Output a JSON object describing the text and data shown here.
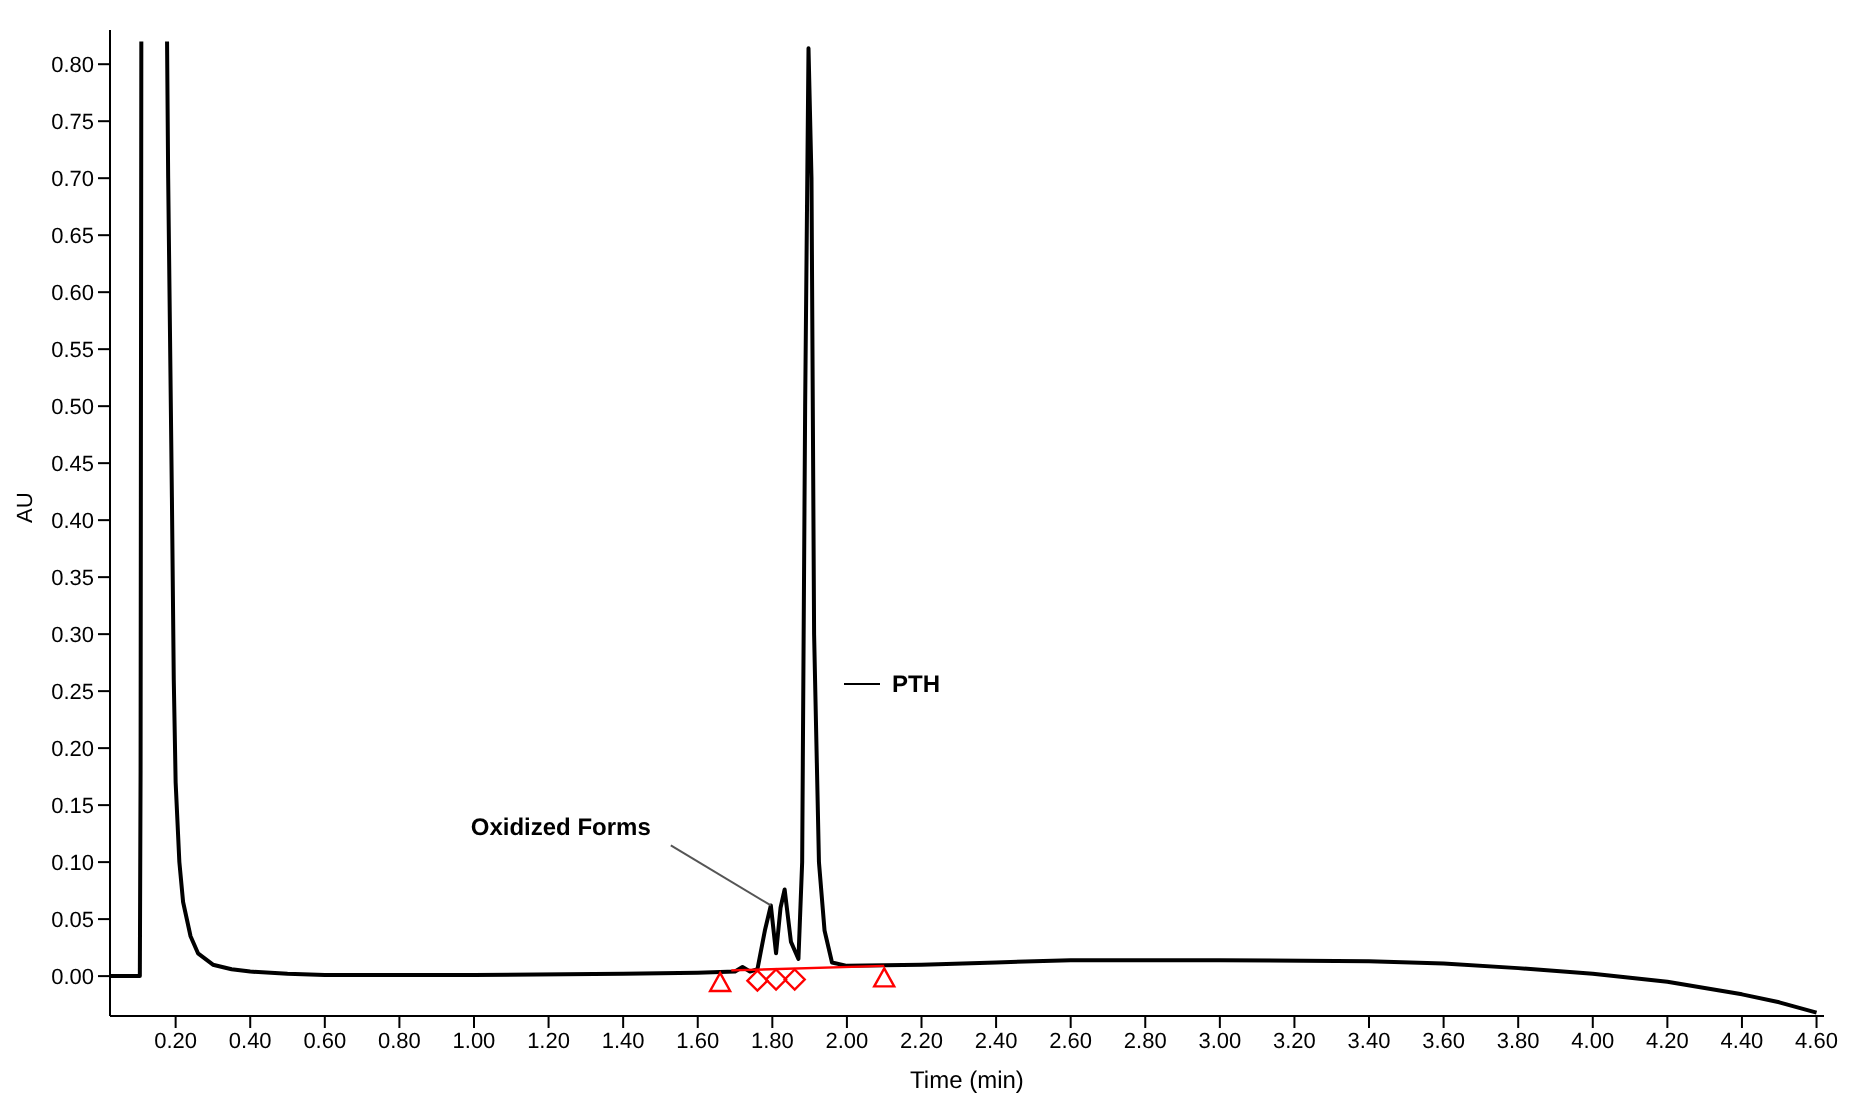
{
  "chart_data": {
    "type": "line",
    "xlabel": "Time (min)",
    "ylabel": "AU",
    "xlim": [
      0.024,
      4.62
    ],
    "ylim": [
      -0.035,
      0.83
    ],
    "xticks": [
      {
        "value": 0.2,
        "label": "0.20"
      },
      {
        "value": 0.4,
        "label": "0.40"
      },
      {
        "value": 0.6,
        "label": "0.60"
      },
      {
        "value": 0.8,
        "label": "0.80"
      },
      {
        "value": 1.0,
        "label": "1.00"
      },
      {
        "value": 1.2,
        "label": "1.20"
      },
      {
        "value": 1.4,
        "label": "1.40"
      },
      {
        "value": 1.6,
        "label": "1.60"
      },
      {
        "value": 1.8,
        "label": "1.80"
      },
      {
        "value": 2.0,
        "label": "2.00"
      },
      {
        "value": 2.2,
        "label": "2.20"
      },
      {
        "value": 2.4,
        "label": "2.40"
      },
      {
        "value": 2.6,
        "label": "2.60"
      },
      {
        "value": 2.8,
        "label": "2.80"
      },
      {
        "value": 3.0,
        "label": "3.00"
      },
      {
        "value": 3.2,
        "label": "3.20"
      },
      {
        "value": 3.4,
        "label": "3.40"
      },
      {
        "value": 3.6,
        "label": "3.60"
      },
      {
        "value": 3.8,
        "label": "3.80"
      },
      {
        "value": 4.0,
        "label": "4.00"
      },
      {
        "value": 4.2,
        "label": "4.20"
      },
      {
        "value": 4.4,
        "label": "4.40"
      },
      {
        "value": 4.6,
        "label": "4.60"
      }
    ],
    "yticks": [
      {
        "value": 0,
        "label": "0.00"
      },
      {
        "value": 0.05,
        "label": "0.05"
      },
      {
        "value": 0.1,
        "label": "0.10"
      },
      {
        "value": 0.15,
        "label": "0.15"
      },
      {
        "value": 0.2,
        "label": "0.20"
      },
      {
        "value": 0.25,
        "label": "0.25"
      },
      {
        "value": 0.3,
        "label": "0.30"
      },
      {
        "value": 0.35,
        "label": "0.35"
      },
      {
        "value": 0.4,
        "label": "0.40"
      },
      {
        "value": 0.45,
        "label": "0.45"
      },
      {
        "value": 0.5,
        "label": "0.50"
      },
      {
        "value": 0.55,
        "label": "0.55"
      },
      {
        "value": 0.6,
        "label": "0.60"
      },
      {
        "value": 0.65,
        "label": "0.65"
      },
      {
        "value": 0.7,
        "label": "0.70"
      },
      {
        "value": 0.75,
        "label": "0.75"
      },
      {
        "value": 0.8,
        "label": "0.80"
      }
    ],
    "annotations": [
      "PTH",
      {
        "text": "Oxidized Forms",
        "x": 1.796,
        "y": 0.062
      }
    ],
    "series": [
      {
        "color": "#000000",
        "marker": "none",
        "line_style": "solid",
        "x": [
          0.024,
          0.104,
          0.106,
          0.108,
          0.11,
          0.175,
          0.177,
          0.18,
          0.19,
          0.195,
          0.2,
          0.21,
          0.22,
          0.24,
          0.26,
          0.3,
          0.35,
          0.4,
          0.5,
          0.6,
          1.0,
          1.4,
          1.6,
          1.7,
          1.72,
          1.74,
          1.76,
          1.78,
          1.796,
          1.81,
          1.822,
          1.833,
          1.85,
          1.87,
          1.88,
          1.888,
          1.897,
          1.905,
          1.912,
          1.925,
          1.94,
          1.96,
          2.0,
          2.2,
          2.4,
          2.6,
          3.0,
          3.4,
          3.6,
          3.8,
          4.0,
          4.2,
          4.4,
          4.5,
          4.6
        ],
        "values": [
          0,
          0,
          0.18,
          0.82,
          null,
          null,
          0.82,
          0.7,
          0.42,
          0.26,
          0.17,
          0.1,
          0.065,
          0.035,
          0.02,
          0.01,
          0.006,
          0.004,
          0.002,
          0.001,
          0.001,
          0.002,
          0.003,
          0.004,
          0.008,
          0.004,
          0.006,
          0.04,
          0.062,
          0.02,
          0.06,
          0.076,
          0.03,
          0.015,
          0.1,
          0.5,
          0.814,
          0.7,
          0.3,
          0.1,
          0.04,
          0.012,
          0.009,
          0.01,
          0.012,
          0.014,
          0.014,
          0.013,
          0.011,
          0.007,
          0.002,
          -0.005,
          -0.016,
          -0.023,
          -0.032
        ]
      },
      {
        "color": "#ff0000",
        "marker": "none",
        "line_style": "solid",
        "x": [
          1.69,
          2.1
        ],
        "values": [
          0.005,
          0.009
        ]
      },
      {
        "type": "scatter",
        "color": "#ff0000",
        "marker": "triangle",
        "x": [
          1.66,
          2.1
        ],
        "values": [
          -0.006,
          -0.002
        ]
      },
      {
        "type": "scatter",
        "color": "#ff0000",
        "marker": "diamond",
        "x": [
          1.76,
          1.81,
          1.86
        ],
        "values": [
          -0.004,
          -0.003,
          -0.003
        ]
      }
    ]
  }
}
